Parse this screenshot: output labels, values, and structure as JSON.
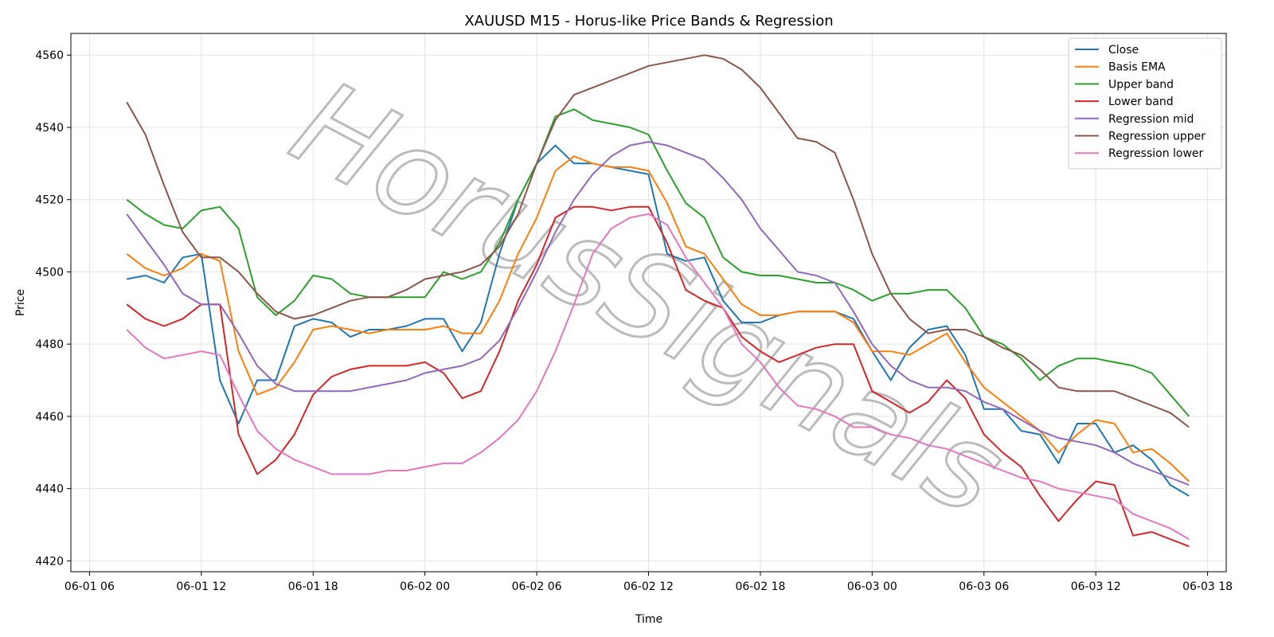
{
  "chart_data": {
    "type": "line",
    "title": "XAUUSD M15 - Horus-like Price Bands & Regression",
    "xlabel": "Time",
    "ylabel": "Price",
    "watermark": "HorusSignals",
    "grid": true,
    "legend": "upper right",
    "xlim": [
      "06-01 05",
      "06-03 19"
    ],
    "xticks": [
      "06-01 06",
      "06-01 12",
      "06-01 18",
      "06-02 00",
      "06-02 06",
      "06-02 12",
      "06-02 18",
      "06-03 00",
      "06-03 06",
      "06-03 12",
      "06-03 18"
    ],
    "ylim": [
      4417,
      4566
    ],
    "yticks": [
      4420,
      4440,
      4460,
      4480,
      4500,
      4520,
      4540,
      4560
    ],
    "x": [
      "06-01 08",
      "06-01 09",
      "06-01 10",
      "06-01 11",
      "06-01 12",
      "06-01 13",
      "06-01 14",
      "06-01 15",
      "06-01 16",
      "06-01 17",
      "06-01 18",
      "06-01 19",
      "06-01 20",
      "06-01 21",
      "06-01 22",
      "06-01 23",
      "06-02 00",
      "06-02 01",
      "06-02 02",
      "06-02 03",
      "06-02 04",
      "06-02 05",
      "06-02 06",
      "06-02 07",
      "06-02 08",
      "06-02 09",
      "06-02 10",
      "06-02 11",
      "06-02 12",
      "06-02 13",
      "06-02 14",
      "06-02 15",
      "06-02 16",
      "06-02 17",
      "06-02 18",
      "06-02 19",
      "06-02 20",
      "06-02 21",
      "06-02 22",
      "06-02 23",
      "06-03 00",
      "06-03 01",
      "06-03 02",
      "06-03 03",
      "06-03 04",
      "06-03 05",
      "06-03 06",
      "06-03 07",
      "06-03 08",
      "06-03 09",
      "06-03 10",
      "06-03 11",
      "06-03 12",
      "06-03 13",
      "06-03 14",
      "06-03 15",
      "06-03 16",
      "06-03 17"
    ],
    "series": [
      {
        "name": "Close",
        "color": "#1f77b4",
        "values": [
          4498,
          4499,
          4497,
          4504,
          4505,
          4470,
          4458,
          4470,
          4470,
          4485,
          4487,
          4486,
          4482,
          4484,
          4484,
          4485,
          4487,
          4487,
          4478,
          4486,
          4505,
          4520,
          4530,
          4535,
          4530,
          4530,
          4529,
          4528,
          4527,
          4505,
          4503,
          4504,
          4492,
          4486,
          4486,
          4488,
          4489,
          4489,
          4489,
          4487,
          4478,
          4470,
          4479,
          4484,
          4485,
          4477,
          4462,
          4462,
          4456,
          4455,
          4447,
          4458,
          4458,
          4450,
          4452,
          4448,
          4441,
          4438
        ]
      },
      {
        "name": "Basis EMA",
        "color": "#ff7f0e",
        "values": [
          4505,
          4501,
          4499,
          4501,
          4505,
          4503,
          4478,
          4466,
          4468,
          4475,
          4484,
          4485,
          4484,
          4483,
          4484,
          4484,
          4484,
          4485,
          4483,
          4483,
          4492,
          4505,
          4515,
          4528,
          4532,
          4530,
          4529,
          4529,
          4528,
          4519,
          4507,
          4505,
          4498,
          4491,
          4488,
          4488,
          4489,
          4489,
          4489,
          4486,
          4478,
          4478,
          4477,
          4480,
          4483,
          4475,
          4468,
          4464,
          4460,
          4456,
          4450,
          4455,
          4459,
          4458,
          4450,
          4451,
          4447,
          4442
        ]
      },
      {
        "name": "Upper band",
        "color": "#2ca02c",
        "values": [
          4520,
          4516,
          4513,
          4512,
          4517,
          4518,
          4512,
          4493,
          4488,
          4492,
          4499,
          4498,
          4494,
          4493,
          4493,
          4493,
          4493,
          4500,
          4498,
          4500,
          4508,
          4520,
          4530,
          4543,
          4545,
          4542,
          4541,
          4540,
          4538,
          4528,
          4519,
          4515,
          4504,
          4500,
          4499,
          4499,
          4498,
          4497,
          4497,
          4495,
          4492,
          4494,
          4494,
          4495,
          4495,
          4490,
          4482,
          4480,
          4476,
          4470,
          4474,
          4476,
          4476,
          4475,
          4474,
          4472,
          4466,
          4460
        ]
      },
      {
        "name": "Lower band",
        "color": "#d62728",
        "values": [
          4491,
          4487,
          4485,
          4487,
          4491,
          4491,
          4455,
          4444,
          4448,
          4455,
          4466,
          4471,
          4473,
          4474,
          4474,
          4474,
          4475,
          4472,
          4465,
          4467,
          4478,
          4492,
          4502,
          4515,
          4518,
          4518,
          4517,
          4518,
          4518,
          4508,
          4495,
          4492,
          4490,
          4482,
          4478,
          4475,
          4477,
          4479,
          4480,
          4480,
          4467,
          4464,
          4461,
          4464,
          4470,
          4465,
          4455,
          4450,
          4446,
          4438,
          4431,
          4437,
          4442,
          4441,
          4427,
          4428,
          4426,
          4424
        ]
      },
      {
        "name": "Regression mid",
        "color": "#9467bd",
        "values": [
          4516,
          4509,
          4502,
          4494,
          4491,
          4491,
          4483,
          4474,
          4469,
          4467,
          4467,
          4467,
          4467,
          4468,
          4469,
          4470,
          4472,
          4473,
          4474,
          4476,
          4481,
          4490,
          4500,
          4511,
          4520,
          4527,
          4532,
          4535,
          4536,
          4535,
          4533,
          4531,
          4526,
          4520,
          4512,
          4506,
          4500,
          4499,
          4497,
          4489,
          4480,
          4474,
          4470,
          4468,
          4468,
          4467,
          4464,
          4462,
          4459,
          4456,
          4454,
          4453,
          4452,
          4450,
          4447,
          4445,
          4443,
          4441
        ]
      },
      {
        "name": "Regression upper",
        "color": "#8c564b",
        "values": [
          4547,
          4538,
          4524,
          4511,
          4504,
          4504,
          4500,
          4494,
          4489,
          4487,
          4488,
          4490,
          4492,
          4493,
          4493,
          4495,
          4498,
          4499,
          4500,
          4502,
          4507,
          4516,
          4530,
          4542,
          4549,
          4551,
          4553,
          4555,
          4557,
          4558,
          4559,
          4560,
          4559,
          4556,
          4551,
          4544,
          4537,
          4536,
          4533,
          4520,
          4505,
          4494,
          4487,
          4483,
          4484,
          4484,
          4482,
          4479,
          4477,
          4473,
          4468,
          4467,
          4467,
          4467,
          4465,
          4463,
          4461,
          4457
        ]
      },
      {
        "name": "Regression lower",
        "color": "#e377c2",
        "values": [
          4484,
          4479,
          4476,
          4477,
          4478,
          4477,
          4466,
          4456,
          4451,
          4448,
          4446,
          4444,
          4444,
          4444,
          4445,
          4445,
          4446,
          4447,
          4447,
          4450,
          4454,
          4459,
          4467,
          4478,
          4491,
          4505,
          4512,
          4515,
          4516,
          4513,
          4504,
          4497,
          4490,
          4480,
          4475,
          4468,
          4463,
          4462,
          4460,
          4457,
          4457,
          4455,
          4454,
          4452,
          4451,
          4449,
          4447,
          4445,
          4443,
          4442,
          4440,
          4439,
          4438,
          4437,
          4433,
          4431,
          4429,
          4426
        ]
      }
    ]
  }
}
